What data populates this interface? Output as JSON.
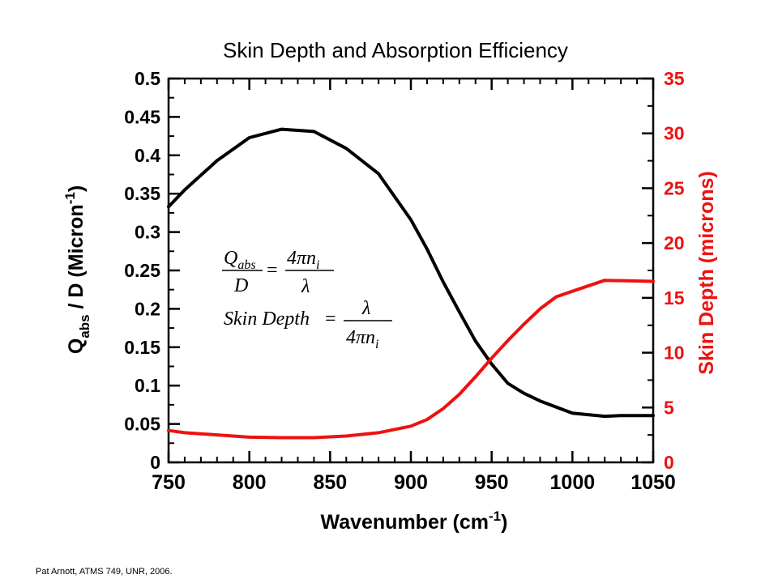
{
  "chart_data": {
    "type": "line",
    "title": "Skin Depth and Absorption Efficiency",
    "xlabel": "Wavenumber (cm",
    "xlabel_sup": "-1",
    "xlabel_end": ")",
    "xlim": [
      750,
      1050
    ],
    "x_ticks": [
      "750",
      "800",
      "850",
      "900",
      "950",
      "1000",
      "1050"
    ],
    "y_left": {
      "label": "Q",
      "label_sub": "abs",
      "label_mid": " / D (Micron",
      "label_sup": "-1",
      "label_end": ")",
      "ylim": [
        0,
        0.5
      ],
      "ticks": [
        "0",
        "0.05",
        "0.1",
        "0.15",
        "0.2",
        "0.25",
        "0.3",
        "0.35",
        "0.4",
        "0.45",
        "0.5"
      ],
      "color": "#000000"
    },
    "y_right": {
      "label": "Skin Depth (microns)",
      "ylim": [
        0,
        35
      ],
      "ticks": [
        "0",
        "5",
        "10",
        "15",
        "20",
        "25",
        "30",
        "35"
      ],
      "color": "#ee1111"
    },
    "series": [
      {
        "axis": "left",
        "color": "#000000",
        "x": [
          750,
          760,
          780,
          800,
          820,
          840,
          860,
          880,
          900,
          910,
          920,
          930,
          940,
          950,
          960,
          970,
          980,
          1000,
          1020,
          1030,
          1050
        ],
        "y": [
          0.333,
          0.355,
          0.393,
          0.423,
          0.434,
          0.431,
          0.409,
          0.376,
          0.316,
          0.278,
          0.235,
          0.196,
          0.158,
          0.128,
          0.103,
          0.09,
          0.08,
          0.064,
          0.06,
          0.061,
          0.061
        ]
      },
      {
        "axis": "right",
        "color": "#ee1111",
        "x": [
          750,
          760,
          780,
          800,
          820,
          840,
          860,
          880,
          900,
          910,
          920,
          930,
          940,
          950,
          960,
          970,
          980,
          990,
          1000,
          1020,
          1050
        ],
        "y": [
          2.9,
          2.7,
          2.5,
          2.3,
          2.25,
          2.25,
          2.4,
          2.7,
          3.3,
          3.9,
          4.9,
          6.2,
          7.8,
          9.5,
          11.1,
          12.6,
          14.0,
          15.1,
          15.6,
          16.6,
          16.5
        ]
      }
    ],
    "grid": false,
    "annotation": {
      "eq1_num": "Q",
      "eq1_num_sub": "abs",
      "eq1_den": "D",
      "eq1_rhs_num": "4πn",
      "eq1_rhs_num_sub": "i",
      "eq1_rhs_den": "λ",
      "eq_sign": "=",
      "eq2_lhs": "Skin Depth",
      "eq2_rhs_num": "λ",
      "eq2_rhs_den": "4πn",
      "eq2_rhs_den_sub": "i"
    }
  },
  "footer": "Pat Arnott, ATMS 749, UNR, 2006."
}
